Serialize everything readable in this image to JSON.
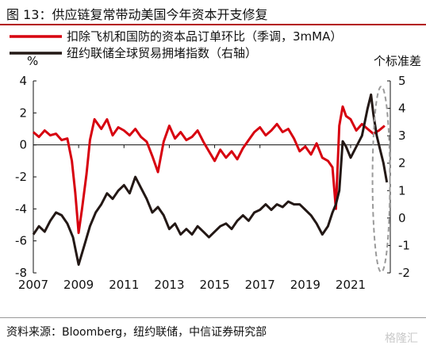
{
  "title": "图 13：供应链复常带动美国今年资本开支修复",
  "source": "资料来源：Bloomberg，纽约联储，中信证券研究部",
  "watermark": "格隆汇",
  "colors": {
    "series1": "#d7000f",
    "series2": "#231815",
    "highlight": "#9a9a9a"
  },
  "chart_data": {
    "type": "line",
    "left_axis": {
      "label": "%",
      "ylim": [
        -8,
        4
      ],
      "ticks": [
        -8,
        -6,
        -4,
        -2,
        0,
        2,
        4
      ]
    },
    "right_axis": {
      "label": "个标准差",
      "ylim": [
        -2,
        5
      ],
      "ticks": [
        -2,
        -1,
        0,
        1,
        2,
        3,
        4,
        5
      ]
    },
    "x_ticks": [
      "2007",
      "2009",
      "2011",
      "2013",
      "2015",
      "2017",
      "2019",
      "2021"
    ],
    "legend": {
      "position": "top"
    },
    "highlight": "dashed-ellipse-around-latest-period",
    "series": [
      {
        "name": "扣除飞机和国防的资本品订单环比（季调，3mMA）",
        "axis": "left",
        "points": [
          [
            2007.0,
            0.8
          ],
          [
            2007.25,
            0.5
          ],
          [
            2007.5,
            0.9
          ],
          [
            2007.75,
            0.6
          ],
          [
            2008.0,
            0.7
          ],
          [
            2008.25,
            0.3
          ],
          [
            2008.5,
            0.4
          ],
          [
            2008.7,
            -1.0
          ],
          [
            2008.85,
            -3.0
          ],
          [
            2009.0,
            -5.5
          ],
          [
            2009.15,
            -4.0
          ],
          [
            2009.35,
            -1.8
          ],
          [
            2009.5,
            0.3
          ],
          [
            2009.7,
            1.6
          ],
          [
            2010.0,
            1.0
          ],
          [
            2010.25,
            1.6
          ],
          [
            2010.5,
            0.6
          ],
          [
            2010.75,
            1.1
          ],
          [
            2011.0,
            0.9
          ],
          [
            2011.25,
            0.6
          ],
          [
            2011.5,
            1.0
          ],
          [
            2011.75,
            0.5
          ],
          [
            2012.0,
            0.2
          ],
          [
            2012.25,
            -0.7
          ],
          [
            2012.5,
            -1.7
          ],
          [
            2012.75,
            0.2
          ],
          [
            2013.0,
            1.2
          ],
          [
            2013.25,
            0.4
          ],
          [
            2013.5,
            0.8
          ],
          [
            2013.75,
            0.3
          ],
          [
            2014.0,
            0.5
          ],
          [
            2014.25,
            0.9
          ],
          [
            2014.5,
            0.2
          ],
          [
            2014.75,
            -0.4
          ],
          [
            2015.0,
            -1.0
          ],
          [
            2015.25,
            -0.3
          ],
          [
            2015.5,
            -0.8
          ],
          [
            2015.75,
            -0.4
          ],
          [
            2016.0,
            -0.9
          ],
          [
            2016.25,
            -0.2
          ],
          [
            2016.5,
            0.3
          ],
          [
            2016.75,
            0.8
          ],
          [
            2017.0,
            1.1
          ],
          [
            2017.25,
            0.6
          ],
          [
            2017.5,
            0.9
          ],
          [
            2017.75,
            1.3
          ],
          [
            2018.0,
            0.8
          ],
          [
            2018.25,
            1.0
          ],
          [
            2018.5,
            0.4
          ],
          [
            2018.75,
            -0.4
          ],
          [
            2019.0,
            -0.1
          ],
          [
            2019.25,
            -0.6
          ],
          [
            2019.5,
            0.1
          ],
          [
            2019.75,
            -0.8
          ],
          [
            2020.0,
            -1.0
          ],
          [
            2020.2,
            -1.4
          ],
          [
            2020.35,
            -4.0
          ],
          [
            2020.5,
            1.2
          ],
          [
            2020.65,
            2.4
          ],
          [
            2020.8,
            1.8
          ],
          [
            2021.0,
            1.6
          ],
          [
            2021.25,
            0.9
          ],
          [
            2021.5,
            1.3
          ],
          [
            2021.75,
            1.0
          ],
          [
            2022.0,
            0.7
          ],
          [
            2022.25,
            0.9
          ],
          [
            2022.5,
            1.2
          ]
        ]
      },
      {
        "name": "纽约联储全球贸易拥堵指数（右轴）",
        "axis": "right",
        "points": [
          [
            2007.0,
            -0.6
          ],
          [
            2007.25,
            -0.3
          ],
          [
            2007.5,
            -0.5
          ],
          [
            2007.75,
            -0.1
          ],
          [
            2008.0,
            0.2
          ],
          [
            2008.25,
            0.1
          ],
          [
            2008.5,
            -0.2
          ],
          [
            2008.75,
            -0.7
          ],
          [
            2009.0,
            -1.7
          ],
          [
            2009.25,
            -1.0
          ],
          [
            2009.5,
            -0.3
          ],
          [
            2009.75,
            0.2
          ],
          [
            2010.0,
            0.5
          ],
          [
            2010.25,
            0.9
          ],
          [
            2010.5,
            0.7
          ],
          [
            2010.75,
            1.0
          ],
          [
            2011.0,
            1.2
          ],
          [
            2011.25,
            0.9
          ],
          [
            2011.5,
            1.5
          ],
          [
            2011.75,
            1.1
          ],
          [
            2012.0,
            0.7
          ],
          [
            2012.25,
            0.2
          ],
          [
            2012.5,
            0.4
          ],
          [
            2012.75,
            0.1
          ],
          [
            2013.0,
            -0.4
          ],
          [
            2013.25,
            -0.2
          ],
          [
            2013.5,
            -0.6
          ],
          [
            2013.75,
            -0.4
          ],
          [
            2014.0,
            -0.6
          ],
          [
            2014.25,
            -0.3
          ],
          [
            2014.5,
            -0.5
          ],
          [
            2014.75,
            -0.7
          ],
          [
            2015.0,
            -0.5
          ],
          [
            2015.25,
            -0.3
          ],
          [
            2015.5,
            -0.2
          ],
          [
            2015.75,
            -0.4
          ],
          [
            2016.0,
            -0.1
          ],
          [
            2016.25,
            0.1
          ],
          [
            2016.5,
            -0.1
          ],
          [
            2016.75,
            0.2
          ],
          [
            2017.0,
            0.3
          ],
          [
            2017.25,
            0.5
          ],
          [
            2017.5,
            0.3
          ],
          [
            2017.75,
            0.5
          ],
          [
            2018.0,
            0.4
          ],
          [
            2018.25,
            0.6
          ],
          [
            2018.5,
            0.5
          ],
          [
            2018.75,
            0.5
          ],
          [
            2019.0,
            0.3
          ],
          [
            2019.25,
            0.1
          ],
          [
            2019.5,
            -0.2
          ],
          [
            2019.75,
            -0.6
          ],
          [
            2020.0,
            -0.3
          ],
          [
            2020.2,
            0.2
          ],
          [
            2020.35,
            0.5
          ],
          [
            2020.5,
            1.0
          ],
          [
            2020.65,
            2.8
          ],
          [
            2020.8,
            2.6
          ],
          [
            2021.0,
            2.2
          ],
          [
            2021.25,
            2.6
          ],
          [
            2021.5,
            3.0
          ],
          [
            2021.75,
            4.0
          ],
          [
            2021.9,
            4.5
          ],
          [
            2022.0,
            3.8
          ],
          [
            2022.15,
            3.0
          ],
          [
            2022.3,
            2.5
          ],
          [
            2022.45,
            2.0
          ],
          [
            2022.6,
            1.3
          ]
        ]
      }
    ]
  }
}
